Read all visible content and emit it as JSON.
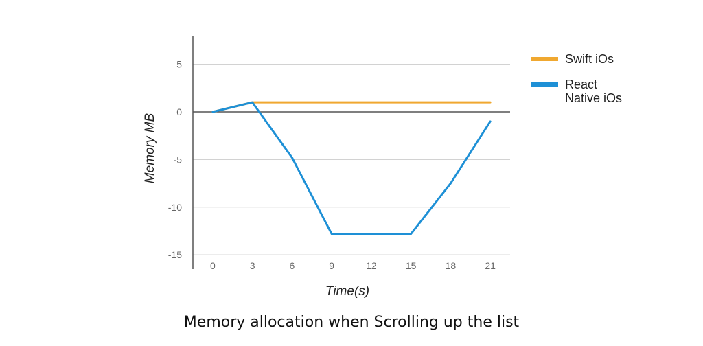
{
  "chart_data": {
    "type": "line",
    "title": "Memory allocation when Scrolling up the list",
    "xlabel": "Time(s)",
    "ylabel": "Memory MB",
    "x": [
      0,
      3,
      6,
      9,
      12,
      15,
      18,
      21
    ],
    "xlim": [
      -1.5,
      22.5
    ],
    "ylim": [
      -16.5,
      8
    ],
    "yticks": [
      5,
      0,
      -5,
      -10,
      -15
    ],
    "grid": true,
    "legend_position": "right",
    "series": [
      {
        "name": "Swift iOs",
        "color": "#F0A830",
        "values": [
          0,
          1,
          1,
          1,
          1,
          1,
          1,
          1
        ]
      },
      {
        "name": "React Native iOs",
        "legend_lines": [
          "React",
          "Native iOs"
        ],
        "color": "#1E90D6",
        "values": [
          0,
          1,
          -4.8,
          -12.8,
          -12.8,
          -12.8,
          -7.5,
          -1
        ]
      }
    ]
  }
}
